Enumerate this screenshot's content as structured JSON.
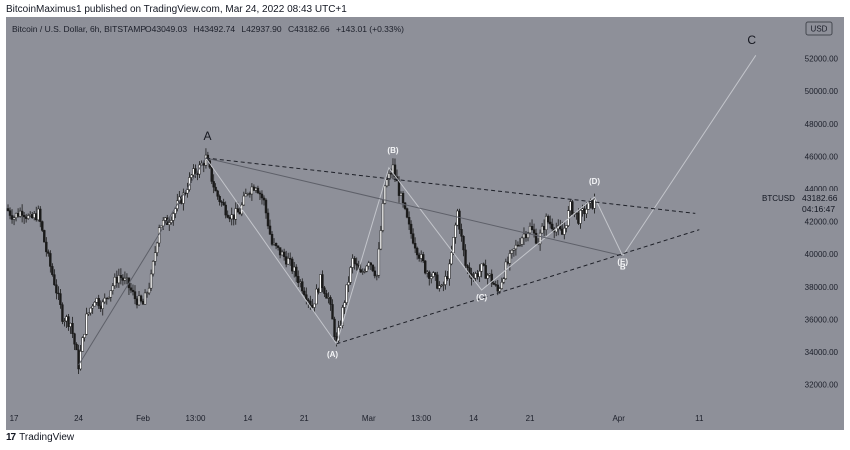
{
  "header": {
    "published": "BitcoinMaximus1 published on TradingView.com, Mar 24, 2022 08:43 UTC+1"
  },
  "footer": {
    "logo_glyph": "17",
    "brand": "TradingView"
  },
  "chart_data": {
    "type": "candlestick",
    "title": "Bitcoin / U.S. Dollar, 6h, BITSTAMP",
    "ohlc_line": {
      "o_label": "O",
      "o": "43049.03",
      "h_label": "H",
      "h": "43492.74",
      "l_label": "L",
      "l": "42937.90",
      "c_label": "C",
      "c": "43182.66",
      "change": "+143.01 (+0.33%)"
    },
    "currency": "USD",
    "symbol": "BTCUSD",
    "last_price": "43182.66",
    "countdown": "04:16:47",
    "ylim": [
      30500,
      53200
    ],
    "yticks": [
      "52000.00",
      "50000.00",
      "48000.00",
      "46000.00",
      "44000.00",
      "42000.00",
      "40000.00",
      "38000.00",
      "36000.00",
      "34000.00",
      "32000.00"
    ],
    "xlim": [
      -9,
      88
    ],
    "xticks": [
      {
        "label": "17",
        "t": -8
      },
      {
        "label": "24",
        "t": 0
      },
      {
        "label": "Feb",
        "t": 8
      },
      {
        "label": "13:00",
        "t": 14.5
      },
      {
        "label": "14",
        "t": 21
      },
      {
        "label": "21",
        "t": 28
      },
      {
        "label": "Mar",
        "t": 36
      },
      {
        "label": "13:00",
        "t": 42.5
      },
      {
        "label": "14",
        "t": 49
      },
      {
        "label": "21",
        "t": 56
      },
      {
        "label": "Apr",
        "t": 67
      },
      {
        "label": "11",
        "t": 77
      }
    ],
    "price_path": [
      [
        -9,
        42800
      ],
      [
        -8,
        42300
      ],
      [
        -7,
        42700
      ],
      [
        -6,
        42100
      ],
      [
        -5,
        42500
      ],
      [
        -4,
        40200
      ],
      [
        -3,
        38300
      ],
      [
        -2,
        36200
      ],
      [
        -1,
        35800
      ],
      [
        0,
        33200
      ],
      [
        1,
        36100
      ],
      [
        2,
        37300
      ],
      [
        3,
        36900
      ],
      [
        4,
        37900
      ],
      [
        5,
        38700
      ],
      [
        6,
        38200
      ],
      [
        7,
        37300
      ],
      [
        8,
        36900
      ],
      [
        9,
        38500
      ],
      [
        10,
        41800
      ],
      [
        11,
        42000
      ],
      [
        12,
        42800
      ],
      [
        13,
        43600
      ],
      [
        14,
        44800
      ],
      [
        15,
        45300
      ],
      [
        15.8,
        45900
      ],
      [
        17,
        43800
      ],
      [
        18,
        42900
      ],
      [
        19,
        42300
      ],
      [
        20,
        42600
      ],
      [
        21,
        43900
      ],
      [
        22,
        44300
      ],
      [
        23,
        43200
      ],
      [
        24,
        40600
      ],
      [
        25,
        40100
      ],
      [
        26,
        39600
      ],
      [
        27,
        38700
      ],
      [
        28,
        37800
      ],
      [
        29,
        36800
      ],
      [
        30,
        38400
      ],
      [
        31,
        37300
      ],
      [
        32,
        34500
      ],
      [
        33,
        37200
      ],
      [
        34,
        39600
      ],
      [
        35,
        38700
      ],
      [
        36,
        39700
      ],
      [
        37,
        38700
      ],
      [
        38,
        44200
      ],
      [
        39,
        45300
      ],
      [
        40,
        43400
      ],
      [
        41,
        41600
      ],
      [
        42,
        40300
      ],
      [
        43,
        39100
      ],
      [
        44,
        38600
      ],
      [
        45,
        37800
      ],
      [
        46,
        39100
      ],
      [
        47,
        42600
      ],
      [
        48,
        39300
      ],
      [
        49,
        38600
      ],
      [
        50,
        39100
      ],
      [
        51,
        38600
      ],
      [
        52,
        37700
      ],
      [
        53,
        39200
      ],
      [
        54,
        40200
      ],
      [
        55,
        41100
      ],
      [
        56,
        41600
      ],
      [
        57,
        40800
      ],
      [
        58,
        42100
      ],
      [
        59,
        41700
      ],
      [
        60,
        41200
      ],
      [
        61,
        42900
      ],
      [
        62,
        42200
      ],
      [
        63,
        42800
      ],
      [
        64,
        43182
      ]
    ],
    "annotations": [
      {
        "label": "A",
        "t": 16,
        "price": 47000,
        "style": "dark"
      },
      {
        "label": "(B)",
        "t": 39,
        "price": 46200,
        "style": "light"
      },
      {
        "label": "(D)",
        "t": 64,
        "price": 44300,
        "style": "light"
      },
      {
        "label": "(A)",
        "t": 31.5,
        "price": 33700,
        "style": "light"
      },
      {
        "label": "(C)",
        "t": 50,
        "price": 37200,
        "style": "light"
      },
      {
        "label": "(E)",
        "t": 67.5,
        "price": 39350,
        "style": "light"
      },
      {
        "label": "B",
        "t": 67.5,
        "price": 39050,
        "style": "light-small"
      },
      {
        "label": "C",
        "t": 83.5,
        "price": 52900,
        "style": "dark"
      }
    ],
    "wave_lines": [
      {
        "points": [
          [
            0,
            33200
          ],
          [
            15.8,
            45900
          ]
        ],
        "style": "solid-gray"
      },
      {
        "points": [
          [
            15.8,
            45900
          ],
          [
            32,
            34500
          ],
          [
            38.5,
            45300
          ],
          [
            50,
            37800
          ],
          [
            64,
            43500
          ],
          [
            67.5,
            39900
          ],
          [
            84,
            52200
          ]
        ],
        "style": "solid-light"
      },
      {
        "points": [
          [
            15.8,
            45900
          ],
          [
            67.5,
            39900
          ]
        ],
        "style": "solid-gray"
      },
      {
        "points": [
          [
            15.8,
            45900
          ],
          [
            76.5,
            42500
          ]
        ],
        "style": "dashed"
      },
      {
        "points": [
          [
            32,
            34500
          ],
          [
            77,
            41500
          ]
        ],
        "style": "dashed"
      }
    ]
  }
}
